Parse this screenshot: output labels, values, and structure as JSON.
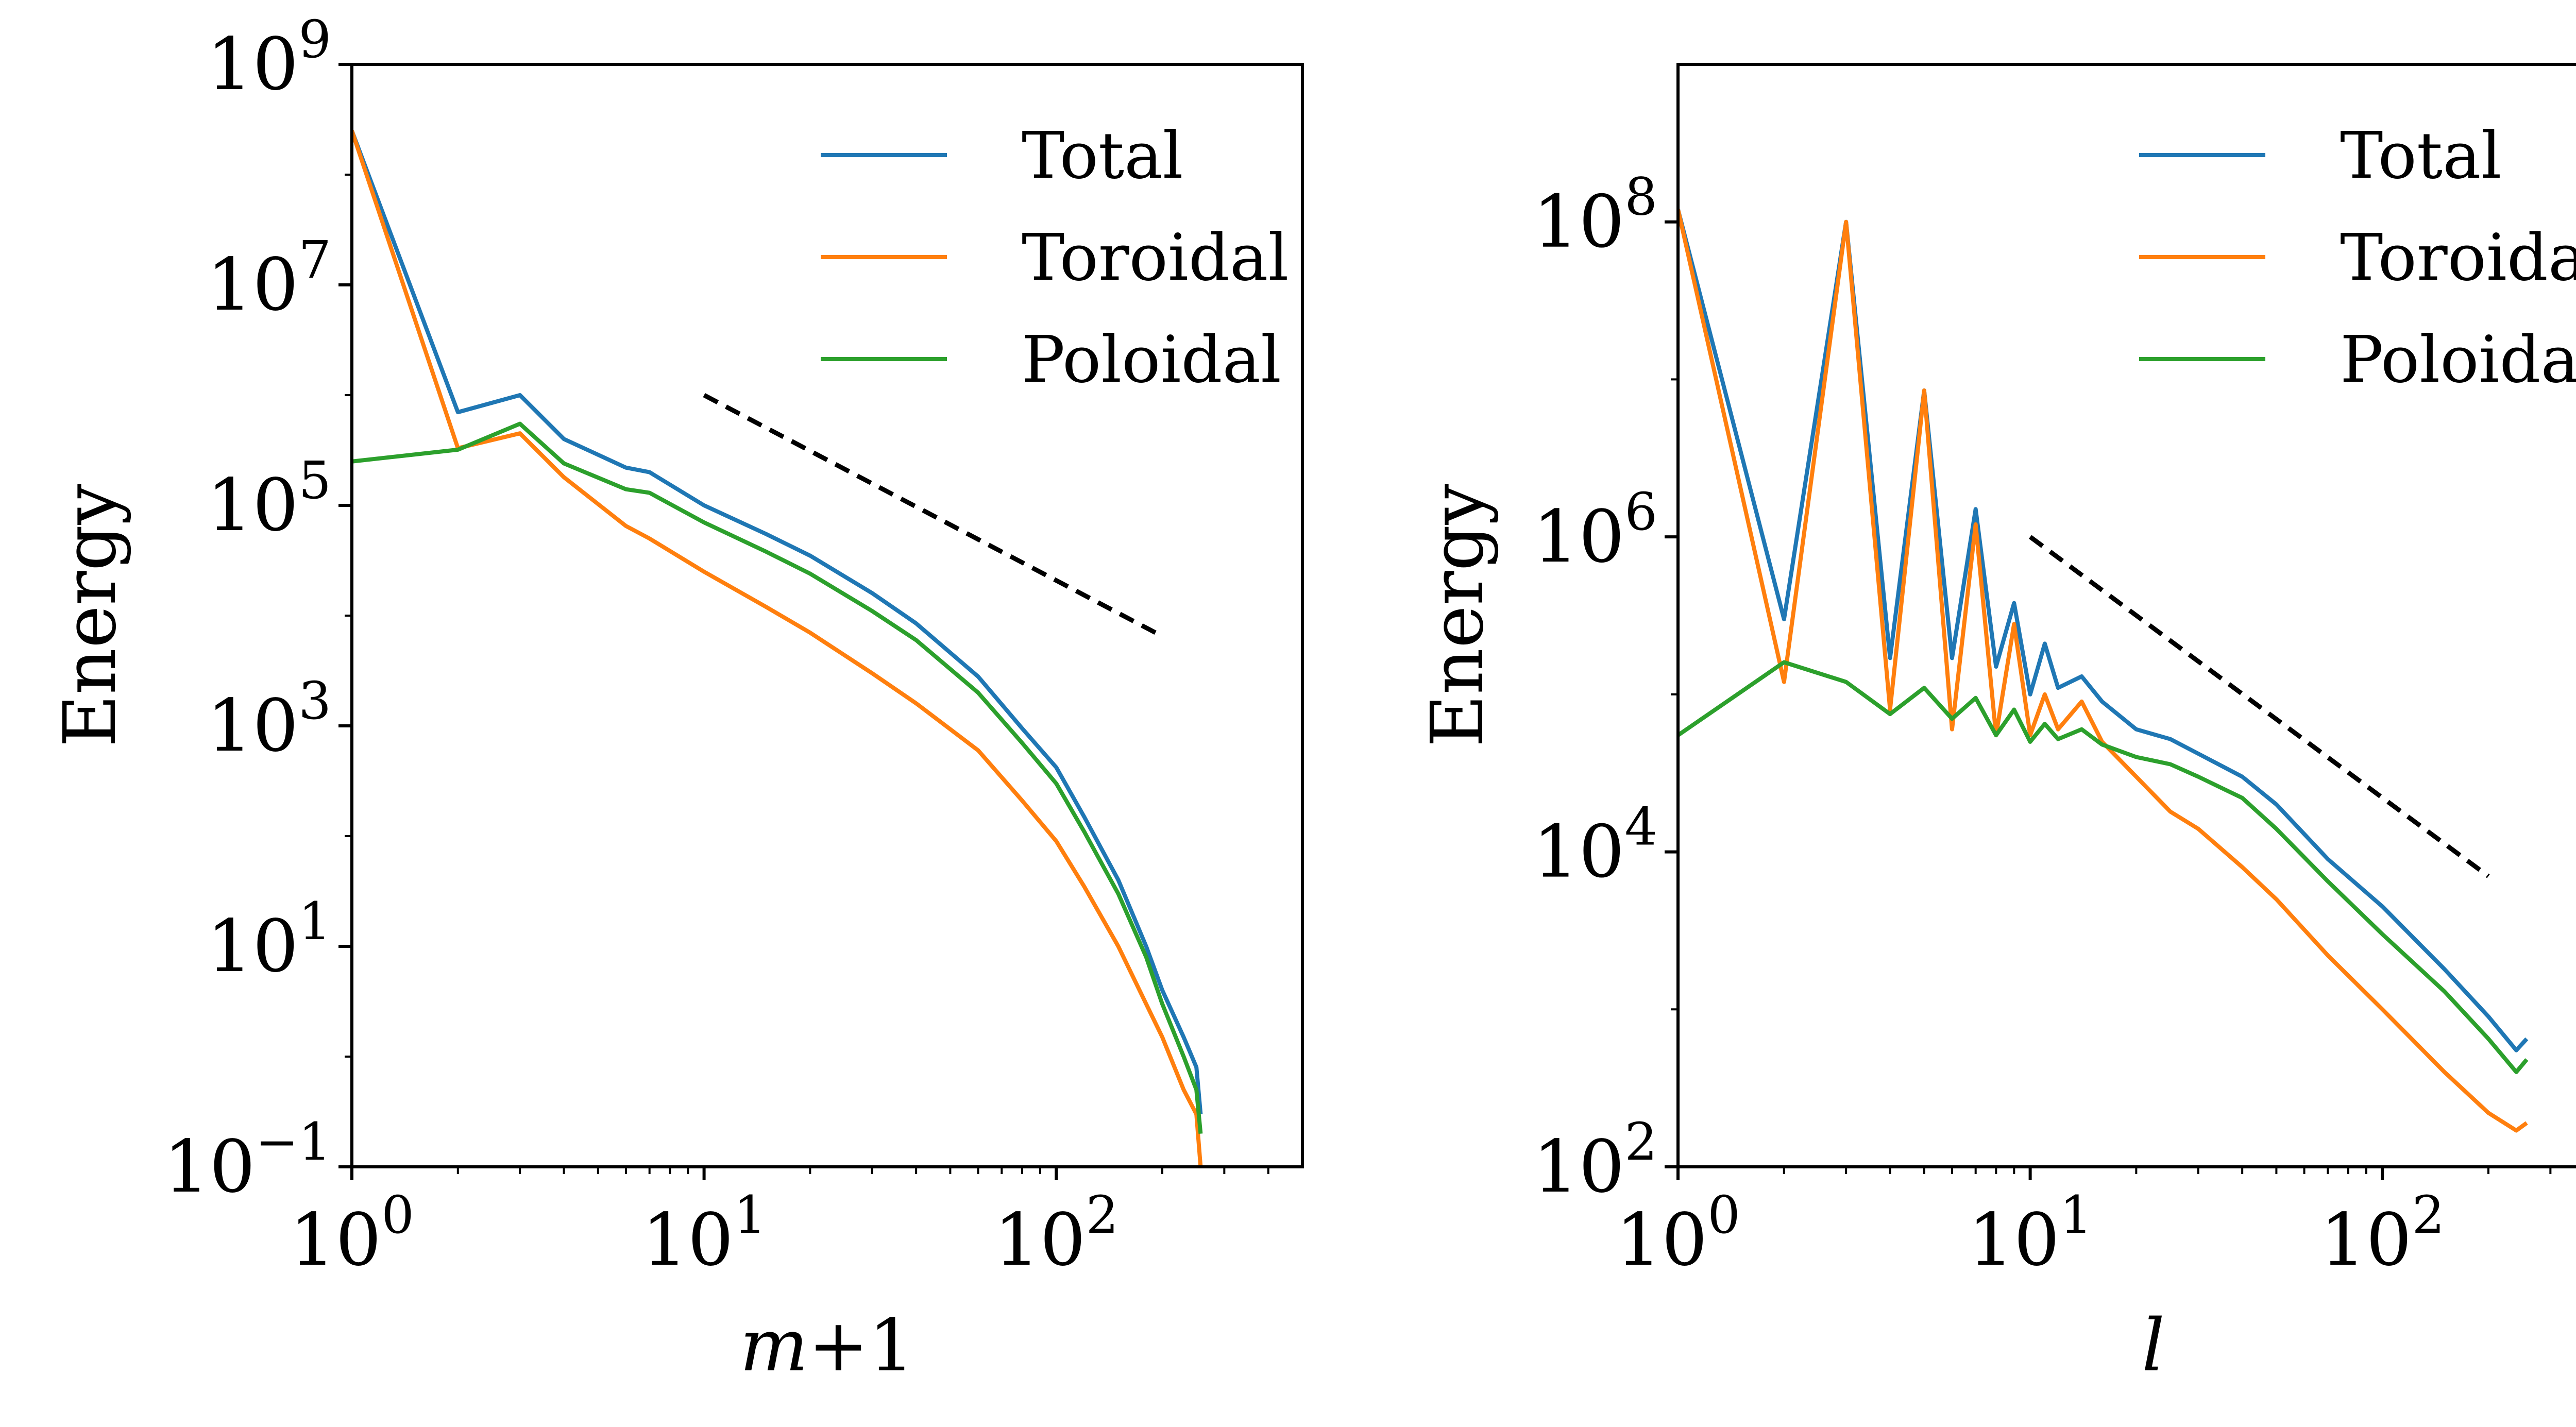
{
  "chart_data": [
    {
      "type": "line",
      "xscale": "log",
      "yscale": "log",
      "xlabel": "m+1",
      "ylabel": "Energy",
      "xlim": [
        1,
        500
      ],
      "ylim": [
        0.1,
        1000000000
      ],
      "xticks": [
        {
          "value": 1,
          "base": "10",
          "exp": "0"
        },
        {
          "value": 10,
          "base": "10",
          "exp": "1"
        },
        {
          "value": 100,
          "base": "10",
          "exp": "2"
        }
      ],
      "yticks": [
        {
          "value": 0.1,
          "base": "10",
          "exp": "−1"
        },
        {
          "value": 10,
          "base": "10",
          "exp": "1"
        },
        {
          "value": 1000,
          "base": "10",
          "exp": "3"
        },
        {
          "value": 100000,
          "base": "10",
          "exp": "5"
        },
        {
          "value": 10000000,
          "base": "10",
          "exp": "7"
        },
        {
          "value": 1000000000,
          "base": "10",
          "exp": "9"
        }
      ],
      "legend_position": "upper-right",
      "series": [
        {
          "name": "Total",
          "color": "#1f77b4",
          "x": [
            1,
            2,
            3,
            4,
            6,
            7,
            10,
            15,
            20,
            30,
            40,
            60,
            80,
            100,
            120,
            150,
            180,
            200,
            230,
            250,
            257
          ],
          "y": [
            250000000,
            700000,
            1000000,
            400000,
            220000,
            200000,
            100000,
            55000,
            35000,
            16000,
            8500,
            2800,
            950,
            420,
            150,
            40,
            10,
            4,
            1.5,
            0.8,
            0.3
          ]
        },
        {
          "name": "Toroidal",
          "color": "#ff7f0e",
          "x": [
            1,
            2,
            3,
            4,
            6,
            7,
            10,
            15,
            20,
            30,
            40,
            60,
            80,
            100,
            120,
            150,
            180,
            200,
            230,
            250,
            257
          ],
          "y": [
            250000000,
            330000,
            450000,
            180000,
            65000,
            50000,
            25000,
            12000,
            7000,
            3000,
            1600,
            600,
            210,
            90,
            35,
            10,
            3,
            1.5,
            0.5,
            0.3,
            0.1
          ]
        },
        {
          "name": "Poloidal",
          "color": "#2ca02c",
          "x": [
            1,
            2,
            3,
            4,
            6,
            7,
            10,
            15,
            20,
            30,
            40,
            60,
            80,
            100,
            120,
            150,
            180,
            200,
            230,
            250,
            257
          ],
          "y": [
            250000,
            320000,
            550000,
            240000,
            140000,
            130000,
            70000,
            38000,
            24000,
            11000,
            6000,
            2000,
            700,
            300,
            110,
            30,
            8,
            3,
            1,
            0.5,
            0.2
          ]
        }
      ],
      "annotations": [
        {
          "type": "reference-line",
          "style": "dashed",
          "x": [
            10,
            200
          ],
          "y": [
            1000000,
            6500
          ]
        }
      ]
    },
    {
      "type": "line",
      "xscale": "log",
      "yscale": "log",
      "xlabel": "l",
      "ylabel": "Energy",
      "xlim": [
        1,
        500
      ],
      "ylim": [
        100,
        1000000000
      ],
      "xticks": [
        {
          "value": 1,
          "base": "10",
          "exp": "0"
        },
        {
          "value": 10,
          "base": "10",
          "exp": "1"
        },
        {
          "value": 100,
          "base": "10",
          "exp": "2"
        }
      ],
      "yticks": [
        {
          "value": 100,
          "base": "10",
          "exp": "2"
        },
        {
          "value": 10000,
          "base": "10",
          "exp": "4"
        },
        {
          "value": 1000000,
          "base": "10",
          "exp": "6"
        },
        {
          "value": 100000000,
          "base": "10",
          "exp": "8"
        }
      ],
      "legend_position": "upper-right",
      "series": [
        {
          "name": "Total",
          "color": "#1f77b4",
          "x": [
            1,
            2,
            3,
            4,
            5,
            6,
            7,
            8,
            9,
            10,
            11,
            12,
            14,
            16,
            20,
            25,
            30,
            40,
            50,
            70,
            100,
            150,
            200,
            240,
            257
          ],
          "y": [
            120000000,
            300000,
            100000000,
            170000,
            8500000,
            170000,
            1500000,
            150000,
            380000,
            100000,
            210000,
            110000,
            130000,
            90000,
            60000,
            52000,
            42000,
            30000,
            20000,
            9000,
            4500,
            1800,
            900,
            550,
            650
          ]
        },
        {
          "name": "Toroidal",
          "color": "#ff7f0e",
          "x": [
            1,
            2,
            3,
            4,
            5,
            6,
            7,
            8,
            9,
            10,
            11,
            12,
            14,
            16,
            20,
            25,
            30,
            40,
            50,
            70,
            100,
            150,
            200,
            240,
            257
          ],
          "y": [
            120000000,
            120000,
            100000000,
            80000,
            8500000,
            60000,
            1200000,
            55000,
            280000,
            55000,
            100000,
            60000,
            90000,
            50000,
            30000,
            18000,
            14000,
            8000,
            5000,
            2200,
            1000,
            400,
            220,
            170,
            190
          ]
        },
        {
          "name": "Poloidal",
          "color": "#2ca02c",
          "x": [
            1,
            2,
            3,
            4,
            5,
            6,
            7,
            8,
            9,
            10,
            11,
            12,
            14,
            16,
            20,
            25,
            30,
            40,
            50,
            70,
            100,
            150,
            200,
            240,
            257
          ],
          "y": [
            55000,
            160000,
            120000,
            75000,
            110000,
            70000,
            95000,
            55000,
            80000,
            50000,
            65000,
            52000,
            60000,
            48000,
            40000,
            36000,
            30000,
            22000,
            14000,
            6500,
            3000,
            1300,
            650,
            400,
            480
          ]
        }
      ],
      "annotations": [
        {
          "type": "reference-line",
          "style": "dashed",
          "x": [
            10,
            200
          ],
          "y": [
            1000000,
            7000
          ]
        }
      ]
    }
  ]
}
